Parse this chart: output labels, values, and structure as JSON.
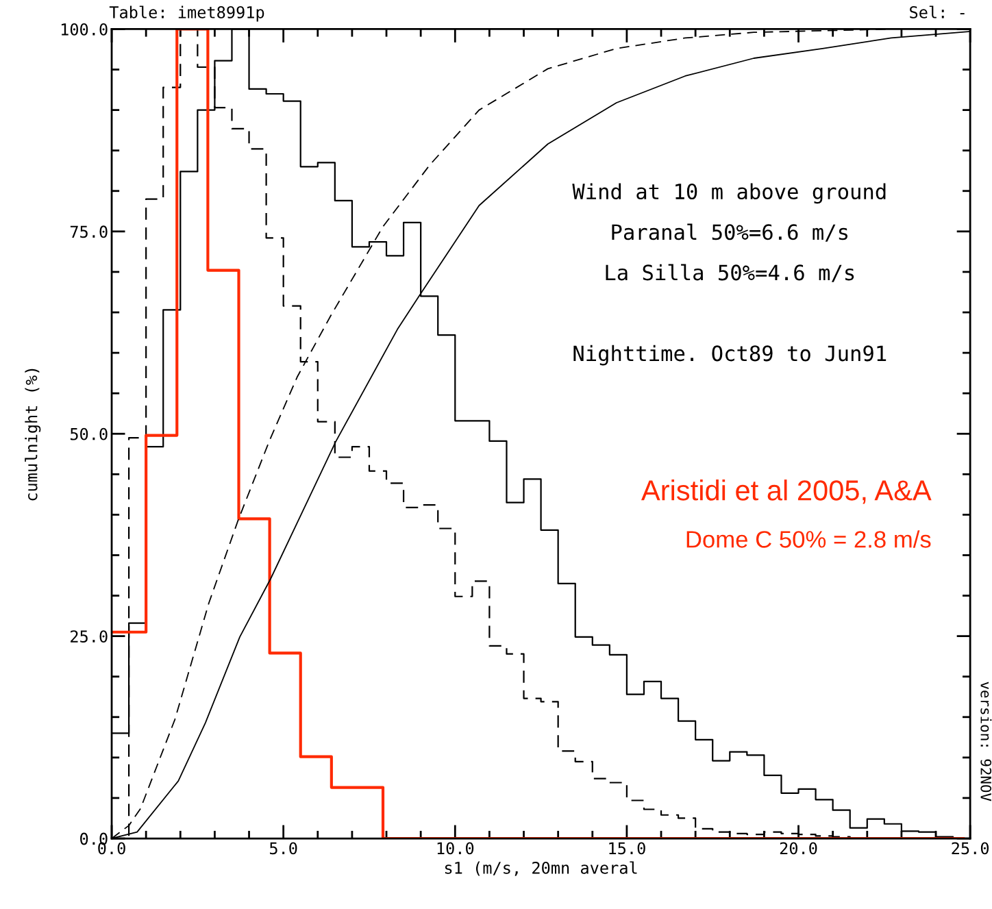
{
  "chart_data": {
    "type": "step",
    "title": "Table: imet8991p",
    "subtitle": "Sel: -",
    "xlabel": "s1 (m/s, 20mn averal",
    "ylabel": "cumulnight (%)",
    "xlim": [
      0,
      25
    ],
    "ylim": [
      0,
      100
    ],
    "xticks": [
      {
        "value": 0,
        "label": "0.0"
      },
      {
        "value": 5,
        "label": "5.0"
      },
      {
        "value": 10,
        "label": "10.0"
      },
      {
        "value": 15,
        "label": "15.0"
      },
      {
        "value": 20,
        "label": "20.0"
      },
      {
        "value": 25,
        "label": "25.0"
      }
    ],
    "yticks": [
      {
        "value": 0,
        "label": "0.0"
      },
      {
        "value": 25,
        "label": "25.0"
      },
      {
        "value": 50,
        "label": "50.0"
      },
      {
        "value": 75,
        "label": "75.0"
      },
      {
        "value": 100,
        "label": "100.0"
      }
    ],
    "grid": false,
    "series": [
      {
        "color": "#000000",
        "line_style": "solid",
        "x": [
          0,
          0.5,
          1,
          1.5,
          2,
          2.5,
          3,
          3.5,
          4,
          4.5,
          5,
          5.5,
          6,
          6.5,
          7,
          7.5,
          8,
          8.5,
          9,
          9.5,
          10,
          10.5,
          11,
          11.5,
          12,
          12.5,
          13,
          13.5,
          14,
          14.5,
          15,
          15.5,
          16,
          16.5,
          17,
          17.5,
          18,
          18.5,
          19,
          19.5,
          20,
          20.5,
          21,
          21.5,
          22,
          22.5,
          23,
          23.5,
          24,
          24.5,
          25
        ],
        "values": [
          13,
          26.6,
          48.4,
          65.3,
          82.4,
          90,
          96.1,
          100,
          92.6,
          92.0,
          91.1,
          83.0,
          83.5,
          78.8,
          73.1,
          73.7,
          72.0,
          76.1,
          67.0,
          62.2,
          51.6,
          51.6,
          49.1,
          41.5,
          44.4,
          38.1,
          31.5,
          24.9,
          23.9,
          22.7,
          17.8,
          19.4,
          17.3,
          14.5,
          12.2,
          9.6,
          10.7,
          10.3,
          7.8,
          5.6,
          6.1,
          4.8,
          3.5,
          1.3,
          2.4,
          1.8,
          0.9,
          0.8,
          0.2,
          0,
          0
        ]
      },
      {
        "color": "#000000",
        "line_style": "dashed",
        "x": [
          0,
          0.5,
          1,
          1.5,
          2,
          2.5,
          3,
          3.5,
          4,
          4.5,
          5,
          5.5,
          6,
          6.5,
          7,
          7.5,
          8,
          8.5,
          9,
          9.5,
          10,
          10.5,
          11,
          11.5,
          12,
          12.5,
          13,
          13.5,
          14,
          14.5,
          15,
          15.5,
          16,
          16.5,
          17,
          17.5,
          18,
          18.5,
          19,
          19.5,
          20,
          20.5,
          21,
          21.5,
          22
        ],
        "values": [
          0,
          49.5,
          79.0,
          92.8,
          100,
          95.3,
          90.3,
          87.7,
          85.2,
          74.2,
          65.8,
          58.9,
          51.5,
          47.1,
          48.4,
          45.4,
          43.9,
          40.9,
          41.2,
          38.3,
          29.9,
          31.8,
          23.8,
          22.8,
          17.3,
          16.9,
          10.8,
          9.5,
          7.4,
          6.9,
          4.7,
          3.6,
          2.9,
          2.5,
          1.2,
          0.8,
          0.6,
          0.5,
          0.8,
          0.6,
          0.5,
          0.3,
          0.2,
          0,
          0
        ]
      },
      {
        "color": "#ff2a00",
        "line_style": "solid",
        "x": [
          0,
          1.0,
          1.9,
          2.8,
          3.7,
          4.6,
          5.5,
          6.4,
          7.9,
          24.8
        ],
        "values": [
          25.5,
          49.8,
          100,
          70.2,
          39.5,
          22.9,
          10.1,
          6.3,
          0,
          0
        ]
      },
      {
        "type": "line",
        "color": "#000000",
        "line_style": "dashed",
        "x": [
          0,
          0.5,
          0.84,
          1.84,
          2.83,
          3.68,
          4.58,
          5.4,
          6.38,
          7.9,
          9.26,
          10.7,
          12.7,
          14.7,
          16.7,
          18.7,
          20.7,
          22.7
        ],
        "values": [
          0,
          1.6,
          3.7,
          14.7,
          29.1,
          39.3,
          49.0,
          57,
          64.6,
          75.6,
          83.2,
          90.0,
          95.1,
          97.6,
          98.9,
          99.6,
          99.8,
          100
        ]
      },
      {
        "type": "line",
        "color": "#000000",
        "line_style": "solid",
        "x": [
          0,
          0.74,
          1.94,
          2.73,
          3.73,
          4.63,
          6.52,
          8.32,
          8.98,
          10.7,
          12.7,
          14.7,
          16.7,
          18.7,
          20.7,
          22.7,
          25
        ],
        "values": [
          0,
          0.8,
          7.1,
          14.3,
          24.9,
          32.1,
          49.0,
          62.9,
          67.2,
          78.2,
          85.8,
          90.9,
          94.2,
          96.4,
          97.6,
          98.9,
          99.7
        ]
      }
    ],
    "annotations": [
      "Wind at 10 m above ground",
      "Paranal 50%=6.6 m/s",
      "La Silla 50%=4.6 m/s",
      "Nighttime. Oct89 to Jun91",
      "Aristidi et al 2005, A&A",
      "Dome C 50% = 2.8 m/s",
      "version: 92NOV"
    ]
  }
}
